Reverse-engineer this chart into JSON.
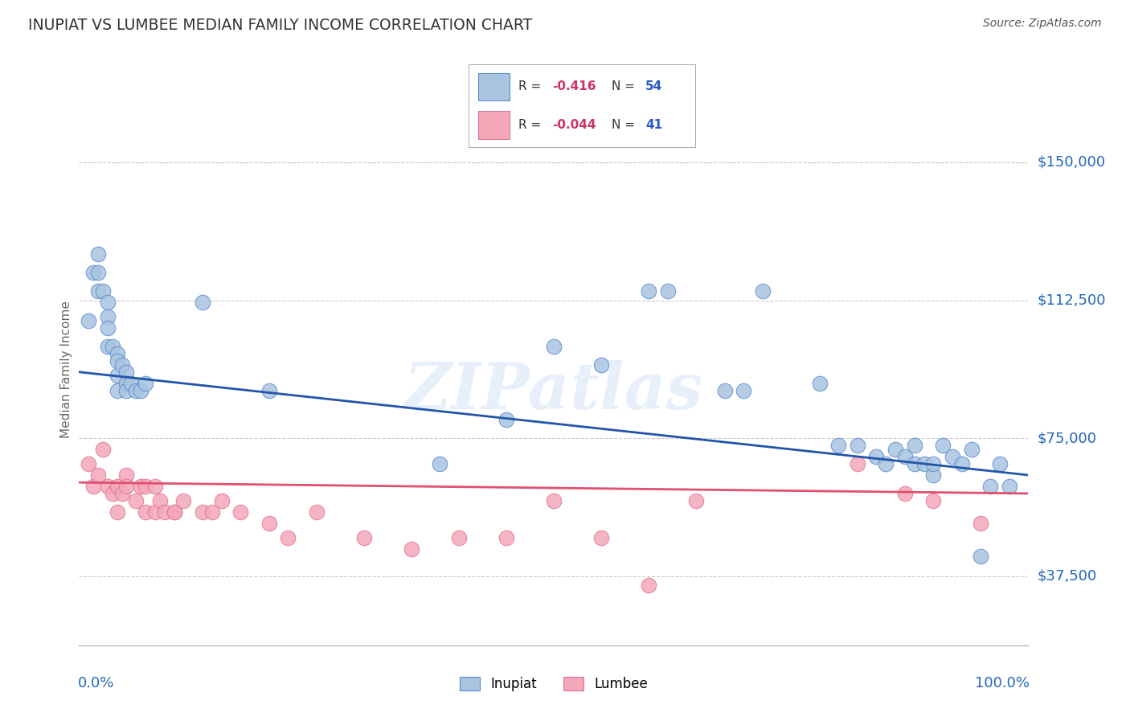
{
  "title": "INUPIAT VS LUMBEE MEDIAN FAMILY INCOME CORRELATION CHART",
  "source": "Source: ZipAtlas.com",
  "ylabel": "Median Family Income",
  "ytick_labels": [
    "$37,500",
    "$75,000",
    "$112,500",
    "$150,000"
  ],
  "ytick_values": [
    37500,
    75000,
    112500,
    150000
  ],
  "ylim": [
    18750,
    168750
  ],
  "xlim": [
    0.0,
    1.0
  ],
  "inupiat_color": "#a8c4e0",
  "lumbee_color": "#f4a7b9",
  "inupiat_edge_color": "#5588cc",
  "lumbee_edge_color": "#e07090",
  "inupiat_line_color": "#2255aa",
  "lumbee_line_color": "#e05070",
  "watermark": "ZIPatlas",
  "background_color": "#ffffff",
  "grid_color": "#cccccc",
  "inupiat_x": [
    0.01,
    0.015,
    0.02,
    0.02,
    0.02,
    0.025,
    0.03,
    0.03,
    0.03,
    0.03,
    0.035,
    0.04,
    0.04,
    0.04,
    0.04,
    0.045,
    0.05,
    0.05,
    0.05,
    0.055,
    0.06,
    0.065,
    0.07,
    0.13,
    0.2,
    0.38,
    0.45,
    0.5,
    0.55,
    0.6,
    0.62,
    0.68,
    0.7,
    0.72,
    0.78,
    0.8,
    0.82,
    0.84,
    0.85,
    0.86,
    0.87,
    0.88,
    0.88,
    0.89,
    0.9,
    0.9,
    0.91,
    0.92,
    0.93,
    0.94,
    0.95,
    0.96,
    0.97,
    0.98
  ],
  "inupiat_y": [
    107000,
    120000,
    125000,
    120000,
    115000,
    115000,
    112000,
    108000,
    105000,
    100000,
    100000,
    98000,
    96000,
    92000,
    88000,
    95000,
    93000,
    90000,
    88000,
    90000,
    88000,
    88000,
    90000,
    112000,
    88000,
    68000,
    80000,
    100000,
    95000,
    115000,
    115000,
    88000,
    88000,
    115000,
    90000,
    73000,
    73000,
    70000,
    68000,
    72000,
    70000,
    68000,
    73000,
    68000,
    65000,
    68000,
    73000,
    70000,
    68000,
    72000,
    43000,
    62000,
    68000,
    62000
  ],
  "lumbee_x": [
    0.01,
    0.015,
    0.02,
    0.025,
    0.03,
    0.035,
    0.04,
    0.04,
    0.045,
    0.05,
    0.05,
    0.06,
    0.065,
    0.07,
    0.07,
    0.08,
    0.08,
    0.085,
    0.09,
    0.1,
    0.1,
    0.11,
    0.13,
    0.14,
    0.15,
    0.17,
    0.2,
    0.22,
    0.25,
    0.3,
    0.35,
    0.4,
    0.45,
    0.5,
    0.55,
    0.6,
    0.65,
    0.82,
    0.87,
    0.9,
    0.95
  ],
  "lumbee_y": [
    68000,
    62000,
    65000,
    72000,
    62000,
    60000,
    62000,
    55000,
    60000,
    65000,
    62000,
    58000,
    62000,
    62000,
    55000,
    55000,
    62000,
    58000,
    55000,
    55000,
    55000,
    58000,
    55000,
    55000,
    58000,
    55000,
    52000,
    48000,
    55000,
    48000,
    45000,
    48000,
    48000,
    58000,
    48000,
    35000,
    58000,
    68000,
    60000,
    58000,
    52000
  ]
}
